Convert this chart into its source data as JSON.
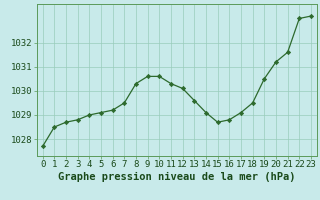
{
  "x": [
    0,
    1,
    2,
    3,
    4,
    5,
    6,
    7,
    8,
    9,
    10,
    11,
    12,
    13,
    14,
    15,
    16,
    17,
    18,
    19,
    20,
    21,
    22,
    23
  ],
  "y": [
    1027.7,
    1028.5,
    1028.7,
    1028.8,
    1029.0,
    1029.1,
    1029.2,
    1029.5,
    1030.3,
    1030.6,
    1030.6,
    1030.3,
    1030.1,
    1029.6,
    1029.1,
    1028.7,
    1028.8,
    1029.1,
    1029.5,
    1030.5,
    1031.2,
    1031.6,
    1033.0,
    1033.1
  ],
  "line_color": "#2d6a2d",
  "marker": "D",
  "marker_size": 2.2,
  "bg_color": "#c8eaea",
  "grid_color": "#99ccbb",
  "xlabel": "Graphe pression niveau de la mer (hPa)",
  "xlabel_color": "#1a4a1a",
  "xlabel_fontsize": 7.5,
  "tick_color": "#1a4a1a",
  "tick_fontsize": 6.5,
  "yticks": [
    1028,
    1029,
    1030,
    1031,
    1032
  ],
  "ylim": [
    1027.3,
    1033.6
  ],
  "xlim": [
    -0.5,
    23.5
  ],
  "spine_color": "#5a9a5a"
}
